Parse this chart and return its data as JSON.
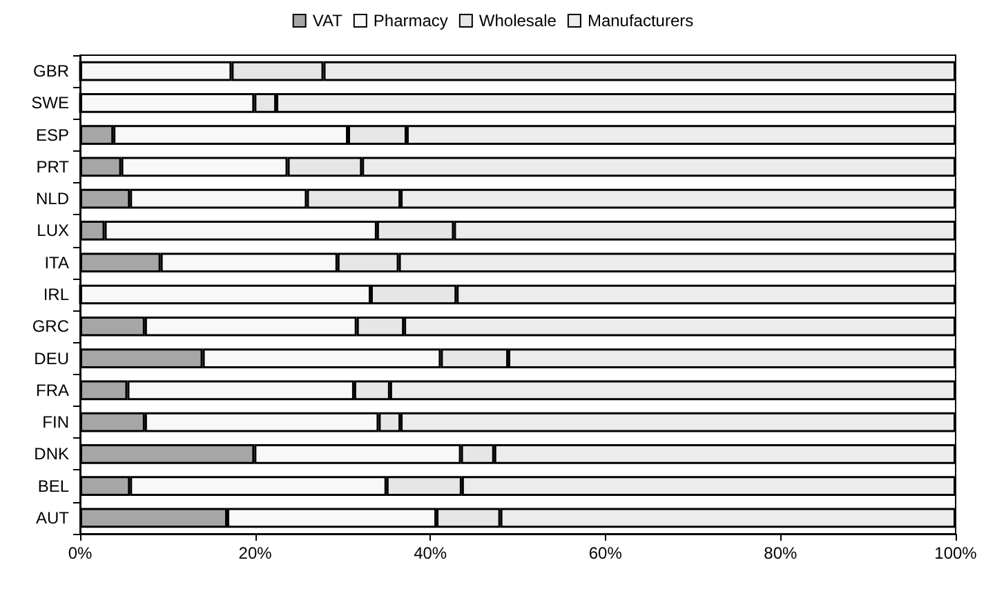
{
  "chart_data": {
    "type": "bar",
    "orientation": "horizontal",
    "stacked": true,
    "legend": "top",
    "grid": false,
    "categories": [
      "GBR",
      "SWE",
      "ESP",
      "PRT",
      "NLD",
      "LUX",
      "ITA",
      "IRL",
      "GRC",
      "DEU",
      "FRA",
      "FIN",
      "DNK",
      "BEL",
      "AUT"
    ],
    "xlim": [
      0,
      100
    ],
    "xticks": [
      {
        "value": 0,
        "label": "0%"
      },
      {
        "value": 20,
        "label": "20%"
      },
      {
        "value": 40,
        "label": "40%"
      },
      {
        "value": 60,
        "label": "60%"
      },
      {
        "value": 80,
        "label": "80%"
      },
      {
        "value": 100,
        "label": "100%"
      }
    ],
    "series": [
      {
        "name": "VAT",
        "color": "#a6a6a6",
        "values": [
          0,
          0,
          3.8,
          4.7,
          5.7,
          2.8,
          9.2,
          0,
          7.4,
          14.0,
          5.4,
          7.4,
          19.9,
          5.7,
          16.8
        ]
      },
      {
        "name": "Pharmacy",
        "color": "#f8f8f8",
        "values": [
          17.3,
          19.9,
          26.8,
          19.0,
          20.2,
          31.1,
          20.2,
          33.2,
          24.2,
          27.2,
          25.9,
          26.7,
          23.6,
          29.3,
          23.9
        ]
      },
      {
        "name": "Wholesale",
        "color": "#e6e6e6",
        "values": [
          10.5,
          2.5,
          6.7,
          8.5,
          10.7,
          8.8,
          7.0,
          9.8,
          5.4,
          7.7,
          4.1,
          2.5,
          3.8,
          8.6,
          7.3
        ]
      },
      {
        "name": "Manufacturers",
        "color": "#ececec",
        "values": [
          72.2,
          77.6,
          62.7,
          67.8,
          63.4,
          57.3,
          63.6,
          57.0,
          63.0,
          51.1,
          64.6,
          63.4,
          52.7,
          56.4,
          52.0
        ]
      }
    ]
  }
}
